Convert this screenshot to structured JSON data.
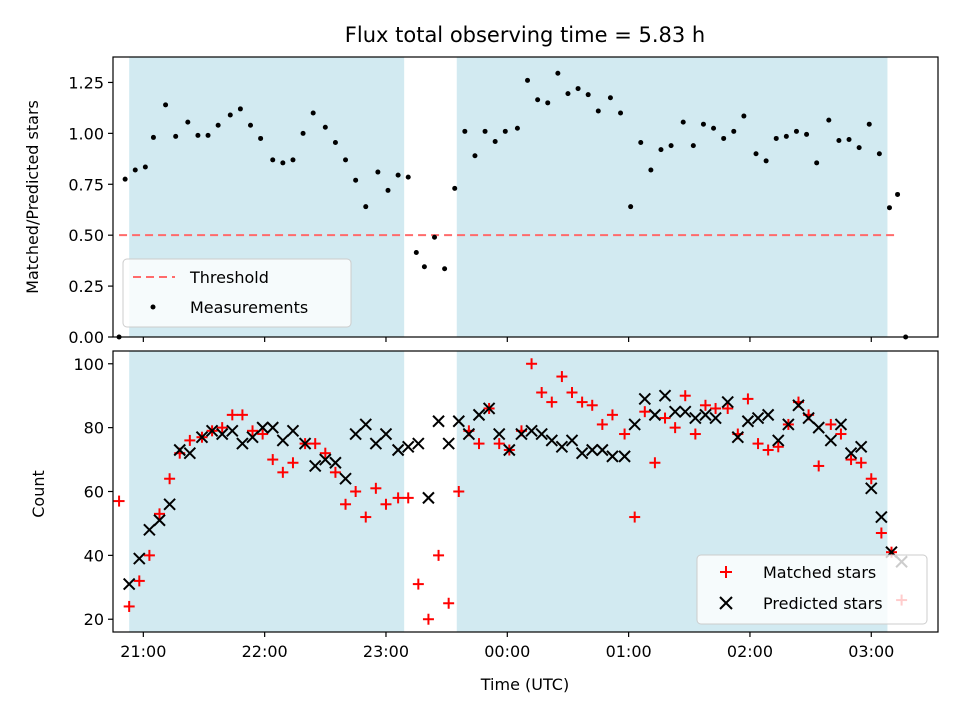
{
  "chart_data": [
    {
      "type": "scatter",
      "title": "Flux total observing time = 5.83 h",
      "xlabel": "",
      "ylabel": "Matched/Predicted stars",
      "xlim": [
        "20:45",
        "03:33"
      ],
      "ylim": [
        0,
        1.375
      ],
      "y_ticks": [
        "0.00",
        "0.25",
        "0.50",
        "0.75",
        "1.00",
        "1.25"
      ],
      "legend_position": "lower-left",
      "observing_windows": [
        [
          "20:53",
          "23:09"
        ],
        [
          "23:35",
          "03:08"
        ]
      ],
      "window_color": "#add8e6",
      "threshold": {
        "name": "Threshold",
        "value": 0.5,
        "x_range": [
          "20:48",
          "03:13"
        ],
        "color": "#ff6b6b",
        "style": "dashed"
      },
      "series": [
        {
          "name": "Measurements",
          "marker": "dot",
          "color": "#000000",
          "points": [
            [
              "20:48",
              0.0
            ],
            [
              "20:51",
              0.775
            ],
            [
              "20:56",
              0.82
            ],
            [
              "21:01",
              0.835
            ],
            [
              "21:05",
              0.98
            ],
            [
              "21:11",
              1.14
            ],
            [
              "21:16",
              0.985
            ],
            [
              "21:22",
              1.055
            ],
            [
              "21:27",
              0.99
            ],
            [
              "21:32",
              0.99
            ],
            [
              "21:37",
              1.04
            ],
            [
              "21:43",
              1.09
            ],
            [
              "21:48",
              1.12
            ],
            [
              "21:53",
              1.04
            ],
            [
              "21:58",
              0.975
            ],
            [
              "22:04",
              0.87
            ],
            [
              "22:09",
              0.855
            ],
            [
              "22:14",
              0.87
            ],
            [
              "22:19",
              1.0
            ],
            [
              "22:24",
              1.1
            ],
            [
              "22:30",
              1.03
            ],
            [
              "22:35",
              0.955
            ],
            [
              "22:40",
              0.87
            ],
            [
              "22:45",
              0.77
            ],
            [
              "22:50",
              0.64
            ],
            [
              "22:56",
              0.81
            ],
            [
              "23:01",
              0.72
            ],
            [
              "23:06",
              0.795
            ],
            [
              "23:11",
              0.785
            ],
            [
              "23:15",
              0.415
            ],
            [
              "23:19",
              0.345
            ],
            [
              "23:24",
              0.49
            ],
            [
              "23:29",
              0.335
            ],
            [
              "23:34",
              0.73
            ],
            [
              "23:39",
              1.01
            ],
            [
              "23:44",
              0.89
            ],
            [
              "23:49",
              1.01
            ],
            [
              "23:54",
              0.96
            ],
            [
              "23:59",
              1.01
            ],
            [
              "00:05",
              1.025
            ],
            [
              "00:10",
              1.26
            ],
            [
              "00:15",
              1.165
            ],
            [
              "00:20",
              1.15
            ],
            [
              "00:25",
              1.295
            ],
            [
              "00:30",
              1.195
            ],
            [
              "00:35",
              1.22
            ],
            [
              "00:40",
              1.19
            ],
            [
              "00:45",
              1.11
            ],
            [
              "00:51",
              1.175
            ],
            [
              "00:56",
              1.1
            ],
            [
              "01:01",
              0.64
            ],
            [
              "01:06",
              0.955
            ],
            [
              "01:11",
              0.82
            ],
            [
              "01:16",
              0.92
            ],
            [
              "01:21",
              0.94
            ],
            [
              "01:27",
              1.055
            ],
            [
              "01:32",
              0.94
            ],
            [
              "01:37",
              1.045
            ],
            [
              "01:42",
              1.025
            ],
            [
              "01:47",
              0.975
            ],
            [
              "01:52",
              1.01
            ],
            [
              "01:57",
              1.085
            ],
            [
              "02:03",
              0.9
            ],
            [
              "02:08",
              0.865
            ],
            [
              "02:13",
              0.975
            ],
            [
              "02:18",
              0.985
            ],
            [
              "02:23",
              1.01
            ],
            [
              "02:28",
              0.995
            ],
            [
              "02:33",
              0.855
            ],
            [
              "02:39",
              1.065
            ],
            [
              "02:44",
              0.965
            ],
            [
              "02:49",
              0.97
            ],
            [
              "02:54",
              0.93
            ],
            [
              "02:59",
              1.045
            ],
            [
              "03:04",
              0.9
            ],
            [
              "03:09",
              0.635
            ],
            [
              "03:13",
              0.7
            ],
            [
              "03:17",
              0.0
            ]
          ]
        }
      ]
    },
    {
      "type": "scatter",
      "title": "",
      "xlabel": "Time (UTC)",
      "ylabel": "Count",
      "xlim": [
        "20:45",
        "03:33"
      ],
      "ylim": [
        16,
        104
      ],
      "x_ticks": [
        "21:00",
        "22:00",
        "23:00",
        "00:00",
        "01:00",
        "02:00",
        "03:00"
      ],
      "y_ticks": [
        "20",
        "40",
        "60",
        "80",
        "100"
      ],
      "legend_position": "lower-right",
      "observing_windows": [
        [
          "20:53",
          "23:09"
        ],
        [
          "23:35",
          "03:08"
        ]
      ],
      "window_color": "#add8e6",
      "series": [
        {
          "name": "Matched stars",
          "marker": "plus",
          "color": "#ff0000",
          "points": [
            [
              "20:48",
              57
            ],
            [
              "20:53",
              24
            ],
            [
              "20:58",
              32
            ],
            [
              "21:03",
              40
            ],
            [
              "21:08",
              53
            ],
            [
              "21:13",
              64
            ],
            [
              "21:18",
              72
            ],
            [
              "21:23",
              76
            ],
            [
              "21:29",
              77
            ],
            [
              "21:34",
              79
            ],
            [
              "21:39",
              80
            ],
            [
              "21:44",
              84
            ],
            [
              "21:49",
              84
            ],
            [
              "21:54",
              79
            ],
            [
              "21:59",
              78
            ],
            [
              "22:04",
              70
            ],
            [
              "22:09",
              66
            ],
            [
              "22:14",
              69
            ],
            [
              "22:20",
              75
            ],
            [
              "22:25",
              75
            ],
            [
              "22:30",
              72
            ],
            [
              "22:35",
              66
            ],
            [
              "22:40",
              56
            ],
            [
              "22:45",
              60
            ],
            [
              "22:50",
              52
            ],
            [
              "22:55",
              61
            ],
            [
              "23:00",
              56
            ],
            [
              "23:06",
              58
            ],
            [
              "23:11",
              58
            ],
            [
              "23:16",
              31
            ],
            [
              "23:21",
              20
            ],
            [
              "23:26",
              40
            ],
            [
              "23:31",
              25
            ],
            [
              "23:36",
              60
            ],
            [
              "23:41",
              79
            ],
            [
              "23:46",
              75
            ],
            [
              "23:51",
              86
            ],
            [
              "23:56",
              75
            ],
            [
              "00:01",
              73
            ],
            [
              "00:07",
              79
            ],
            [
              "00:12",
              100
            ],
            [
              "00:17",
              91
            ],
            [
              "00:22",
              88
            ],
            [
              "00:27",
              96
            ],
            [
              "00:32",
              91
            ],
            [
              "00:37",
              88
            ],
            [
              "00:42",
              87
            ],
            [
              "00:47",
              81
            ],
            [
              "00:52",
              84
            ],
            [
              "00:58",
              78
            ],
            [
              "01:03",
              52
            ],
            [
              "01:08",
              85
            ],
            [
              "01:13",
              69
            ],
            [
              "01:18",
              83
            ],
            [
              "01:23",
              80
            ],
            [
              "01:28",
              90
            ],
            [
              "01:33",
              78
            ],
            [
              "01:38",
              87
            ],
            [
              "01:43",
              86
            ],
            [
              "01:49",
              86
            ],
            [
              "01:54",
              78
            ],
            [
              "01:59",
              89
            ],
            [
              "02:04",
              75
            ],
            [
              "02:09",
              73
            ],
            [
              "02:14",
              74
            ],
            [
              "02:19",
              81
            ],
            [
              "02:24",
              88
            ],
            [
              "02:29",
              84
            ],
            [
              "02:34",
              68
            ],
            [
              "02:40",
              81
            ],
            [
              "02:45",
              78
            ],
            [
              "02:50",
              70
            ],
            [
              "02:55",
              69
            ],
            [
              "03:00",
              64
            ],
            [
              "03:05",
              47
            ],
            [
              "03:10",
              41
            ],
            [
              "03:15",
              26
            ]
          ]
        },
        {
          "name": "Predicted stars",
          "marker": "x",
          "color": "#000000",
          "points": [
            [
              "20:53",
              31
            ],
            [
              "20:58",
              39
            ],
            [
              "21:03",
              48
            ],
            [
              "21:08",
              51
            ],
            [
              "21:13",
              56
            ],
            [
              "21:18",
              73
            ],
            [
              "21:23",
              72
            ],
            [
              "21:29",
              77
            ],
            [
              "21:34",
              79
            ],
            [
              "21:39",
              78
            ],
            [
              "21:44",
              79
            ],
            [
              "21:49",
              75
            ],
            [
              "21:54",
              77
            ],
            [
              "21:59",
              80
            ],
            [
              "22:04",
              80
            ],
            [
              "22:09",
              76
            ],
            [
              "22:14",
              79
            ],
            [
              "22:20",
              75
            ],
            [
              "22:25",
              68
            ],
            [
              "22:30",
              70
            ],
            [
              "22:35",
              69
            ],
            [
              "22:40",
              64
            ],
            [
              "22:45",
              78
            ],
            [
              "22:50",
              81
            ],
            [
              "22:55",
              75
            ],
            [
              "23:00",
              78
            ],
            [
              "23:06",
              73
            ],
            [
              "23:11",
              74
            ],
            [
              "23:16",
              75
            ],
            [
              "23:21",
              58
            ],
            [
              "23:26",
              82
            ],
            [
              "23:31",
              75
            ],
            [
              "23:36",
              82
            ],
            [
              "23:41",
              78
            ],
            [
              "23:46",
              84
            ],
            [
              "23:51",
              86
            ],
            [
              "23:56",
              78
            ],
            [
              "00:01",
              73
            ],
            [
              "00:07",
              78
            ],
            [
              "00:12",
              79
            ],
            [
              "00:17",
              78
            ],
            [
              "00:22",
              76
            ],
            [
              "00:27",
              74
            ],
            [
              "00:32",
              76
            ],
            [
              "00:37",
              72
            ],
            [
              "00:42",
              73
            ],
            [
              "00:47",
              73
            ],
            [
              "00:52",
              71
            ],
            [
              "00:58",
              71
            ],
            [
              "01:03",
              81
            ],
            [
              "01:08",
              89
            ],
            [
              "01:13",
              84
            ],
            [
              "01:18",
              90
            ],
            [
              "01:23",
              85
            ],
            [
              "01:28",
              85
            ],
            [
              "01:33",
              83
            ],
            [
              "01:38",
              84
            ],
            [
              "01:43",
              83
            ],
            [
              "01:49",
              88
            ],
            [
              "01:54",
              77
            ],
            [
              "01:59",
              82
            ],
            [
              "02:04",
              83
            ],
            [
              "02:09",
              84
            ],
            [
              "02:14",
              76
            ],
            [
              "02:19",
              81
            ],
            [
              "02:24",
              87
            ],
            [
              "02:29",
              83
            ],
            [
              "02:34",
              80
            ],
            [
              "02:40",
              76
            ],
            [
              "02:45",
              81
            ],
            [
              "02:50",
              72
            ],
            [
              "02:55",
              74
            ],
            [
              "03:00",
              61
            ],
            [
              "03:05",
              52
            ],
            [
              "03:10",
              41
            ],
            [
              "03:15",
              38
            ]
          ]
        }
      ]
    }
  ]
}
